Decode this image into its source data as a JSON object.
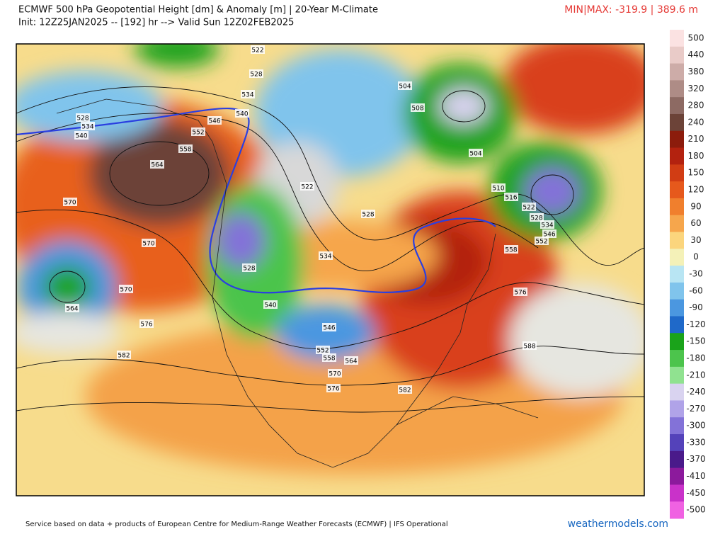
{
  "header": {
    "title": "ECMWF 500 hPa Geopotential Height [dm] & Anomaly [m] | 20-Year M-Climate",
    "subtitle": "Init: 12Z25JAN2025 -- [192] hr --> Valid Sun 12Z02FEB2025",
    "minmax": "MIN|MAX: -319.9 | 389.6 m"
  },
  "contour_labels": [
    522,
    528,
    534,
    528,
    534,
    540,
    540,
    546,
    552,
    558,
    564,
    570,
    570,
    570,
    564,
    576,
    582,
    504,
    508,
    504,
    510,
    516,
    522,
    528,
    534,
    546,
    552,
    558,
    576,
    588,
    522,
    528,
    534,
    528,
    540,
    546,
    552,
    558,
    564,
    570,
    576,
    582
  ],
  "colorbar": {
    "ticks": [
      500,
      440,
      380,
      320,
      280,
      240,
      210,
      180,
      150,
      120,
      90,
      60,
      30,
      0,
      -30,
      -60,
      -90,
      -120,
      -150,
      -180,
      -210,
      -240,
      -270,
      -300,
      -330,
      -370,
      -410,
      -450,
      -500
    ],
    "colors": [
      "#fbe2e2",
      "#e9cbc8",
      "#cdaca8",
      "#ae8c86",
      "#8d6a63",
      "#6c4338",
      "#8c1c0c",
      "#b3220f",
      "#d13d14",
      "#e6591c",
      "#f07f2d",
      "#f6a64c",
      "#fbd57d",
      "#f4f1b8",
      "#b8e5f3",
      "#80c4ec",
      "#4b97e0",
      "#1f69c9",
      "#1aa31a",
      "#4cc44c",
      "#90e290",
      "#d9d3f0",
      "#b0a3e8",
      "#8372d8",
      "#5442ba",
      "#4a1a8a",
      "#8c1a9c",
      "#c932c9",
      "#f062e2"
    ]
  },
  "footer": {
    "credit": "Service based on data + products of European Centre for Medium-Range Weather Forecasts (ECMWF) | IFS Operational",
    "site": "weathermodels.com"
  }
}
